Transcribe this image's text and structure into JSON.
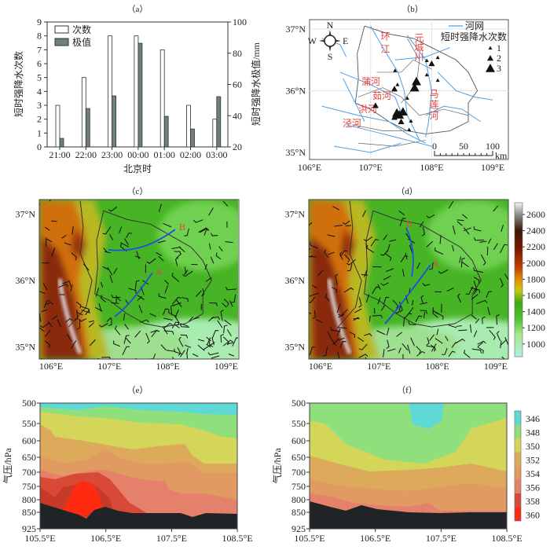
{
  "chart_data": [
    {
      "type": "bar",
      "title": "（a）",
      "categories": [
        "21:00",
        "22:00",
        "23:00",
        "00:00",
        "01:00",
        "02:00",
        "03:00"
      ],
      "series": [
        {
          "name": "次数",
          "axis": "left",
          "color": "#ffffff",
          "values": [
            3,
            5,
            8,
            8,
            7,
            3,
            2
          ]
        },
        {
          "name": "极值",
          "axis": "right",
          "color": "#6e7f80",
          "values": [
            25.5,
            44.6,
            52.7,
            86.4,
            39.6,
            31.5,
            52.2
          ]
        }
      ],
      "xlabel": "北京时",
      "ylabel": "短时强降水次数",
      "y2label": "短时强降水极值/mm",
      "ylim": [
        0,
        9
      ],
      "y2lim": [
        20,
        100
      ],
      "yticks": [
        "0",
        "1",
        "2",
        "3",
        "4",
        "5",
        "6",
        "7",
        "8",
        "9"
      ],
      "y2ticks": [
        "20",
        "40",
        "60",
        "80",
        "100"
      ],
      "legend": "top-left"
    },
    {
      "type": "scatter",
      "title": "（b）",
      "xticks": [
        "106°E",
        "107°E",
        "108°E",
        "109°E"
      ],
      "yticks": [
        "35°N",
        "36°N",
        "37°N"
      ],
      "legend": {
        "river": "河网",
        "title": "短时强降水次数",
        "sizes": [
          "1",
          "2",
          "3"
        ]
      },
      "river_labels": [
        "环江",
        "元城川",
        "蒲河",
        "茹河",
        "洪河",
        "泾河",
        "马莲河"
      ],
      "compass": {
        "n": "N",
        "s": "S",
        "w": "W",
        "e": "E"
      },
      "scale": {
        "ticks": [
          "0",
          "50",
          "100"
        ],
        "unit": "km"
      },
      "stations": [
        {
          "lon": 107.4,
          "lat": 36.33,
          "count": 1
        },
        {
          "lon": 108.1,
          "lat": 36.54,
          "count": 1
        },
        {
          "lon": 107.92,
          "lat": 36.49,
          "count": 1
        },
        {
          "lon": 108.0,
          "lat": 36.44,
          "count": 2
        },
        {
          "lon": 107.92,
          "lat": 36.26,
          "count": 1
        },
        {
          "lon": 108.1,
          "lat": 36.17,
          "count": 1
        },
        {
          "lon": 107.75,
          "lat": 36.15,
          "count": 3
        },
        {
          "lon": 107.72,
          "lat": 36.05,
          "count": 3
        },
        {
          "lon": 107.44,
          "lat": 36.1,
          "count": 1
        },
        {
          "lon": 107.39,
          "lat": 36.03,
          "count": 2
        },
        {
          "lon": 107.6,
          "lat": 35.88,
          "count": 1
        },
        {
          "lon": 107.08,
          "lat": 35.76,
          "count": 2
        },
        {
          "lon": 107.43,
          "lat": 35.64,
          "count": 3
        },
        {
          "lon": 107.47,
          "lat": 35.61,
          "count": 3
        },
        {
          "lon": 107.53,
          "lat": 35.66,
          "count": 3
        },
        {
          "lon": 107.39,
          "lat": 35.57,
          "count": 2
        },
        {
          "lon": 107.5,
          "lat": 35.5,
          "count": 2
        },
        {
          "lon": 107.66,
          "lat": 35.51,
          "count": 1
        },
        {
          "lon": 107.63,
          "lat": 35.37,
          "count": 1
        }
      ]
    },
    {
      "type": "heatmap",
      "title": "（c）",
      "xticks": [
        "106°E",
        "107°E",
        "108°E",
        "109°E"
      ],
      "yticks": [
        "35°N",
        "36°N",
        "37°N"
      ],
      "line_labels": [
        "A",
        "B"
      ]
    },
    {
      "type": "heatmap",
      "title": "（d）",
      "xticks": [
        "106°E",
        "107°E",
        "108°E",
        "109°E"
      ],
      "yticks": [
        "35°N",
        "36°N",
        "37°N"
      ],
      "line_labels": [
        "A",
        "B"
      ],
      "colorbar": {
        "label_ticks": [
          "2600",
          "2400",
          "2200",
          "2000",
          "1800",
          "1600",
          "1400",
          "1200",
          "1000"
        ],
        "range": [
          900,
          2700
        ]
      }
    },
    {
      "type": "area",
      "title": "（e）",
      "ylabel": "气压/hPa",
      "yticks": [
        "500",
        "550",
        "600",
        "650",
        "700",
        "750",
        "800",
        "850",
        "925"
      ],
      "xticks": [
        "105.5°E",
        "106.5°E",
        "107.5°E",
        "108.5°E"
      ]
    },
    {
      "type": "area",
      "title": "（f）",
      "ylabel": "气压/hPa",
      "yticks": [
        "500",
        "550",
        "600",
        "650",
        "700",
        "750",
        "800",
        "850",
        "925"
      ],
      "xticks": [
        "105.5°E",
        "106.5°E",
        "107.5°E",
        "108.5°E"
      ],
      "colorbar": {
        "ticks": [
          "346",
          "348",
          "350",
          "352",
          "354",
          "356",
          "358",
          "360"
        ],
        "colors": [
          "#5fd9d6",
          "#8fe07c",
          "#d4d65a",
          "#dcaa5a",
          "#e09a62",
          "#e5806a",
          "#d84a36",
          "#ff2a10"
        ]
      }
    }
  ]
}
